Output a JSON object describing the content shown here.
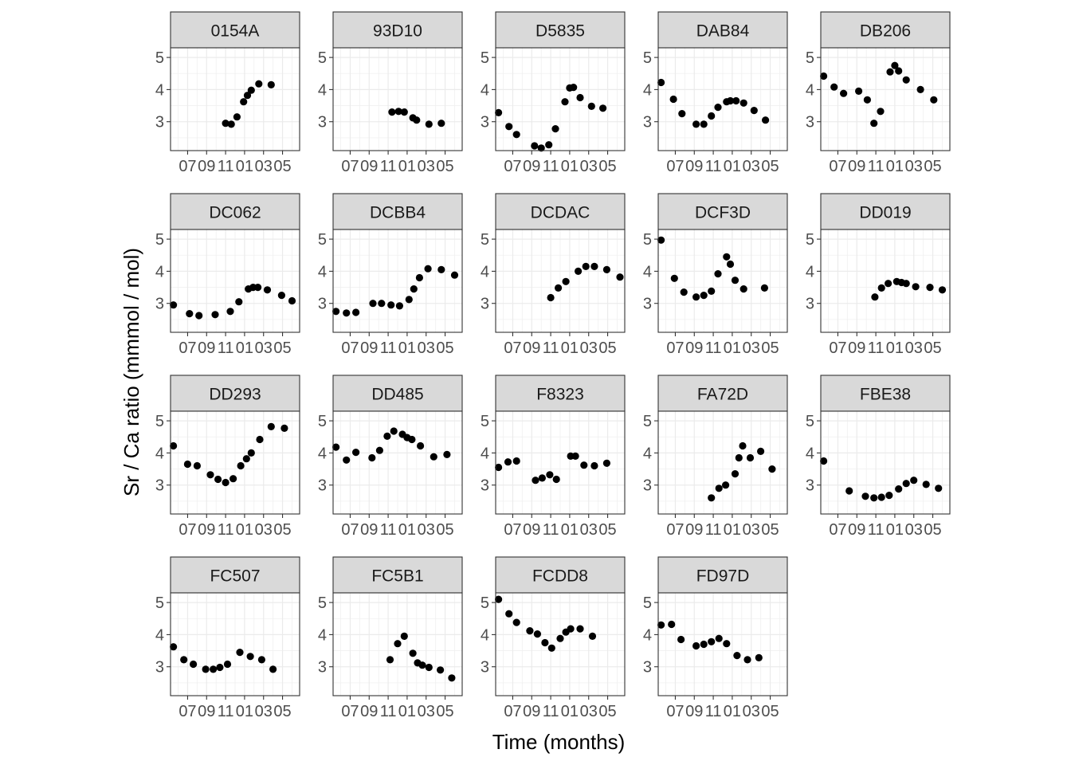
{
  "chart_data": {
    "type": "scatter",
    "xlabel": "Time (months)",
    "ylabel": "Sr / Ca ratio (mmmol / mol)",
    "x_ticks": [
      "07",
      "09",
      "11",
      "01",
      "03",
      "05"
    ],
    "x_tick_positions": [
      7,
      9,
      11,
      13,
      15,
      17
    ],
    "xlim": [
      5.2,
      18.8
    ],
    "y_ticks": [
      3,
      4,
      5
    ],
    "ylim": [
      2.1,
      5.3
    ],
    "grid": true,
    "panels": [
      {
        "name": "0154A",
        "points": [
          [
            11.0,
            2.95
          ],
          [
            11.6,
            2.92
          ],
          [
            12.2,
            3.15
          ],
          [
            12.9,
            3.62
          ],
          [
            13.3,
            3.82
          ],
          [
            13.7,
            3.98
          ],
          [
            14.5,
            4.18
          ],
          [
            15.8,
            4.15
          ]
        ]
      },
      {
        "name": "93D10",
        "points": [
          [
            11.4,
            3.3
          ],
          [
            12.1,
            3.32
          ],
          [
            12.7,
            3.3
          ],
          [
            13.6,
            3.12
          ],
          [
            14.0,
            3.05
          ],
          [
            15.3,
            2.92
          ],
          [
            16.6,
            2.95
          ]
        ]
      },
      {
        "name": "D5835",
        "points": [
          [
            5.5,
            3.28
          ],
          [
            6.6,
            2.85
          ],
          [
            7.4,
            2.6
          ],
          [
            9.3,
            2.25
          ],
          [
            10.0,
            2.18
          ],
          [
            10.8,
            2.28
          ],
          [
            11.5,
            2.78
          ],
          [
            12.5,
            3.62
          ],
          [
            13.0,
            4.05
          ],
          [
            13.4,
            4.07
          ],
          [
            14.1,
            3.75
          ],
          [
            15.3,
            3.48
          ],
          [
            16.5,
            3.42
          ]
        ]
      },
      {
        "name": "DAB84",
        "points": [
          [
            5.5,
            4.22
          ],
          [
            6.8,
            3.7
          ],
          [
            7.7,
            3.25
          ],
          [
            9.2,
            2.92
          ],
          [
            10.0,
            2.92
          ],
          [
            10.8,
            3.18
          ],
          [
            11.5,
            3.45
          ],
          [
            12.4,
            3.62
          ],
          [
            12.8,
            3.65
          ],
          [
            13.4,
            3.65
          ],
          [
            14.2,
            3.58
          ],
          [
            15.3,
            3.35
          ],
          [
            16.5,
            3.05
          ]
        ]
      },
      {
        "name": "DB206",
        "points": [
          [
            5.5,
            4.42
          ],
          [
            6.6,
            4.08
          ],
          [
            7.6,
            3.88
          ],
          [
            9.2,
            3.95
          ],
          [
            10.1,
            3.68
          ],
          [
            10.8,
            2.95
          ],
          [
            11.5,
            3.32
          ],
          [
            12.5,
            4.55
          ],
          [
            13.0,
            4.75
          ],
          [
            13.4,
            4.58
          ],
          [
            14.2,
            4.3
          ],
          [
            15.7,
            4.0
          ],
          [
            17.1,
            3.68
          ]
        ]
      },
      {
        "name": "DC062",
        "points": [
          [
            5.5,
            2.95
          ],
          [
            7.2,
            2.68
          ],
          [
            8.2,
            2.62
          ],
          [
            9.9,
            2.65
          ],
          [
            11.5,
            2.75
          ],
          [
            12.4,
            3.05
          ],
          [
            13.4,
            3.45
          ],
          [
            13.9,
            3.5
          ],
          [
            14.4,
            3.5
          ],
          [
            15.4,
            3.42
          ],
          [
            16.9,
            3.25
          ],
          [
            18.0,
            3.08
          ]
        ]
      },
      {
        "name": "DCBB4",
        "points": [
          [
            5.5,
            2.75
          ],
          [
            6.6,
            2.7
          ],
          [
            7.6,
            2.72
          ],
          [
            9.4,
            3.0
          ],
          [
            10.3,
            3.0
          ],
          [
            11.3,
            2.95
          ],
          [
            12.2,
            2.92
          ],
          [
            13.2,
            3.12
          ],
          [
            13.7,
            3.45
          ],
          [
            14.3,
            3.8
          ],
          [
            15.2,
            4.08
          ],
          [
            16.6,
            4.05
          ],
          [
            18.0,
            3.88
          ]
        ]
      },
      {
        "name": "DCDAC",
        "points": [
          [
            11.0,
            3.18
          ],
          [
            11.8,
            3.48
          ],
          [
            12.6,
            3.68
          ],
          [
            13.9,
            4.0
          ],
          [
            14.7,
            4.15
          ],
          [
            15.6,
            4.15
          ],
          [
            16.9,
            4.05
          ],
          [
            18.3,
            3.82
          ]
        ]
      },
      {
        "name": "DCF3D",
        "points": [
          [
            5.5,
            4.97
          ],
          [
            6.9,
            3.78
          ],
          [
            7.9,
            3.35
          ],
          [
            9.2,
            3.2
          ],
          [
            10.0,
            3.25
          ],
          [
            10.8,
            3.38
          ],
          [
            11.5,
            3.92
          ],
          [
            12.4,
            4.45
          ],
          [
            12.8,
            4.22
          ],
          [
            13.3,
            3.72
          ],
          [
            14.2,
            3.45
          ],
          [
            16.4,
            3.48
          ]
        ]
      },
      {
        "name": "DD019",
        "points": [
          [
            10.9,
            3.2
          ],
          [
            11.6,
            3.48
          ],
          [
            12.3,
            3.62
          ],
          [
            13.2,
            3.68
          ],
          [
            13.7,
            3.65
          ],
          [
            14.2,
            3.62
          ],
          [
            15.2,
            3.52
          ],
          [
            16.7,
            3.5
          ],
          [
            18.0,
            3.42
          ]
        ]
      },
      {
        "name": "DD293",
        "points": [
          [
            5.5,
            4.22
          ],
          [
            7.0,
            3.65
          ],
          [
            8.0,
            3.6
          ],
          [
            9.4,
            3.32
          ],
          [
            10.2,
            3.18
          ],
          [
            11.0,
            3.08
          ],
          [
            11.8,
            3.2
          ],
          [
            12.6,
            3.6
          ],
          [
            13.2,
            3.82
          ],
          [
            13.7,
            4.0
          ],
          [
            14.6,
            4.42
          ],
          [
            15.8,
            4.82
          ],
          [
            17.2,
            4.77
          ]
        ]
      },
      {
        "name": "DD485",
        "points": [
          [
            5.5,
            4.18
          ],
          [
            6.6,
            3.78
          ],
          [
            7.6,
            4.02
          ],
          [
            9.3,
            3.85
          ],
          [
            10.1,
            4.08
          ],
          [
            10.9,
            4.52
          ],
          [
            11.6,
            4.68
          ],
          [
            12.5,
            4.58
          ],
          [
            13.0,
            4.48
          ],
          [
            13.5,
            4.42
          ],
          [
            14.4,
            4.22
          ],
          [
            15.8,
            3.88
          ],
          [
            17.2,
            3.95
          ]
        ]
      },
      {
        "name": "F8323",
        "points": [
          [
            5.5,
            3.55
          ],
          [
            6.5,
            3.72
          ],
          [
            7.4,
            3.75
          ],
          [
            9.4,
            3.15
          ],
          [
            10.1,
            3.22
          ],
          [
            10.9,
            3.32
          ],
          [
            11.6,
            3.18
          ],
          [
            13.1,
            3.9
          ],
          [
            13.6,
            3.9
          ],
          [
            14.5,
            3.62
          ],
          [
            15.6,
            3.6
          ],
          [
            16.9,
            3.68
          ]
        ]
      },
      {
        "name": "FA72D",
        "points": [
          [
            10.8,
            2.6
          ],
          [
            11.6,
            2.9
          ],
          [
            12.3,
            3.0
          ],
          [
            13.3,
            3.35
          ],
          [
            13.7,
            3.85
          ],
          [
            14.1,
            4.22
          ],
          [
            14.9,
            3.85
          ],
          [
            16.0,
            4.05
          ],
          [
            17.2,
            3.5
          ]
        ]
      },
      {
        "name": "FBE38",
        "points": [
          [
            5.5,
            3.75
          ],
          [
            8.2,
            2.82
          ],
          [
            9.9,
            2.65
          ],
          [
            10.8,
            2.6
          ],
          [
            11.6,
            2.62
          ],
          [
            12.4,
            2.68
          ],
          [
            13.4,
            2.88
          ],
          [
            14.2,
            3.05
          ],
          [
            15.0,
            3.15
          ],
          [
            16.3,
            3.02
          ],
          [
            17.6,
            2.9
          ]
        ]
      },
      {
        "name": "FC507",
        "points": [
          [
            5.5,
            3.62
          ],
          [
            6.6,
            3.22
          ],
          [
            7.6,
            3.08
          ],
          [
            8.9,
            2.92
          ],
          [
            9.7,
            2.92
          ],
          [
            10.4,
            2.98
          ],
          [
            11.2,
            3.08
          ],
          [
            12.5,
            3.45
          ],
          [
            13.6,
            3.32
          ],
          [
            14.8,
            3.22
          ],
          [
            16.0,
            2.92
          ]
        ]
      },
      {
        "name": "FC5B1",
        "points": [
          [
            11.2,
            3.22
          ],
          [
            12.0,
            3.72
          ],
          [
            12.7,
            3.95
          ],
          [
            13.6,
            3.42
          ],
          [
            14.1,
            3.12
          ],
          [
            14.6,
            3.05
          ],
          [
            15.3,
            2.98
          ],
          [
            16.5,
            2.9
          ],
          [
            17.7,
            2.65
          ]
        ]
      },
      {
        "name": "FCDD8",
        "points": [
          [
            5.5,
            5.1
          ],
          [
            6.6,
            4.65
          ],
          [
            7.4,
            4.38
          ],
          [
            8.8,
            4.12
          ],
          [
            9.6,
            4.02
          ],
          [
            10.4,
            3.75
          ],
          [
            11.1,
            3.58
          ],
          [
            12.0,
            3.88
          ],
          [
            12.6,
            4.08
          ],
          [
            13.1,
            4.18
          ],
          [
            14.1,
            4.18
          ],
          [
            15.4,
            3.95
          ]
        ]
      },
      {
        "name": "FD97D",
        "points": [
          [
            5.5,
            4.3
          ],
          [
            6.6,
            4.32
          ],
          [
            7.6,
            3.85
          ],
          [
            9.2,
            3.65
          ],
          [
            10.0,
            3.7
          ],
          [
            10.8,
            3.78
          ],
          [
            11.6,
            3.88
          ],
          [
            12.4,
            3.72
          ],
          [
            13.5,
            3.35
          ],
          [
            14.6,
            3.22
          ],
          [
            15.8,
            3.28
          ]
        ]
      }
    ]
  }
}
